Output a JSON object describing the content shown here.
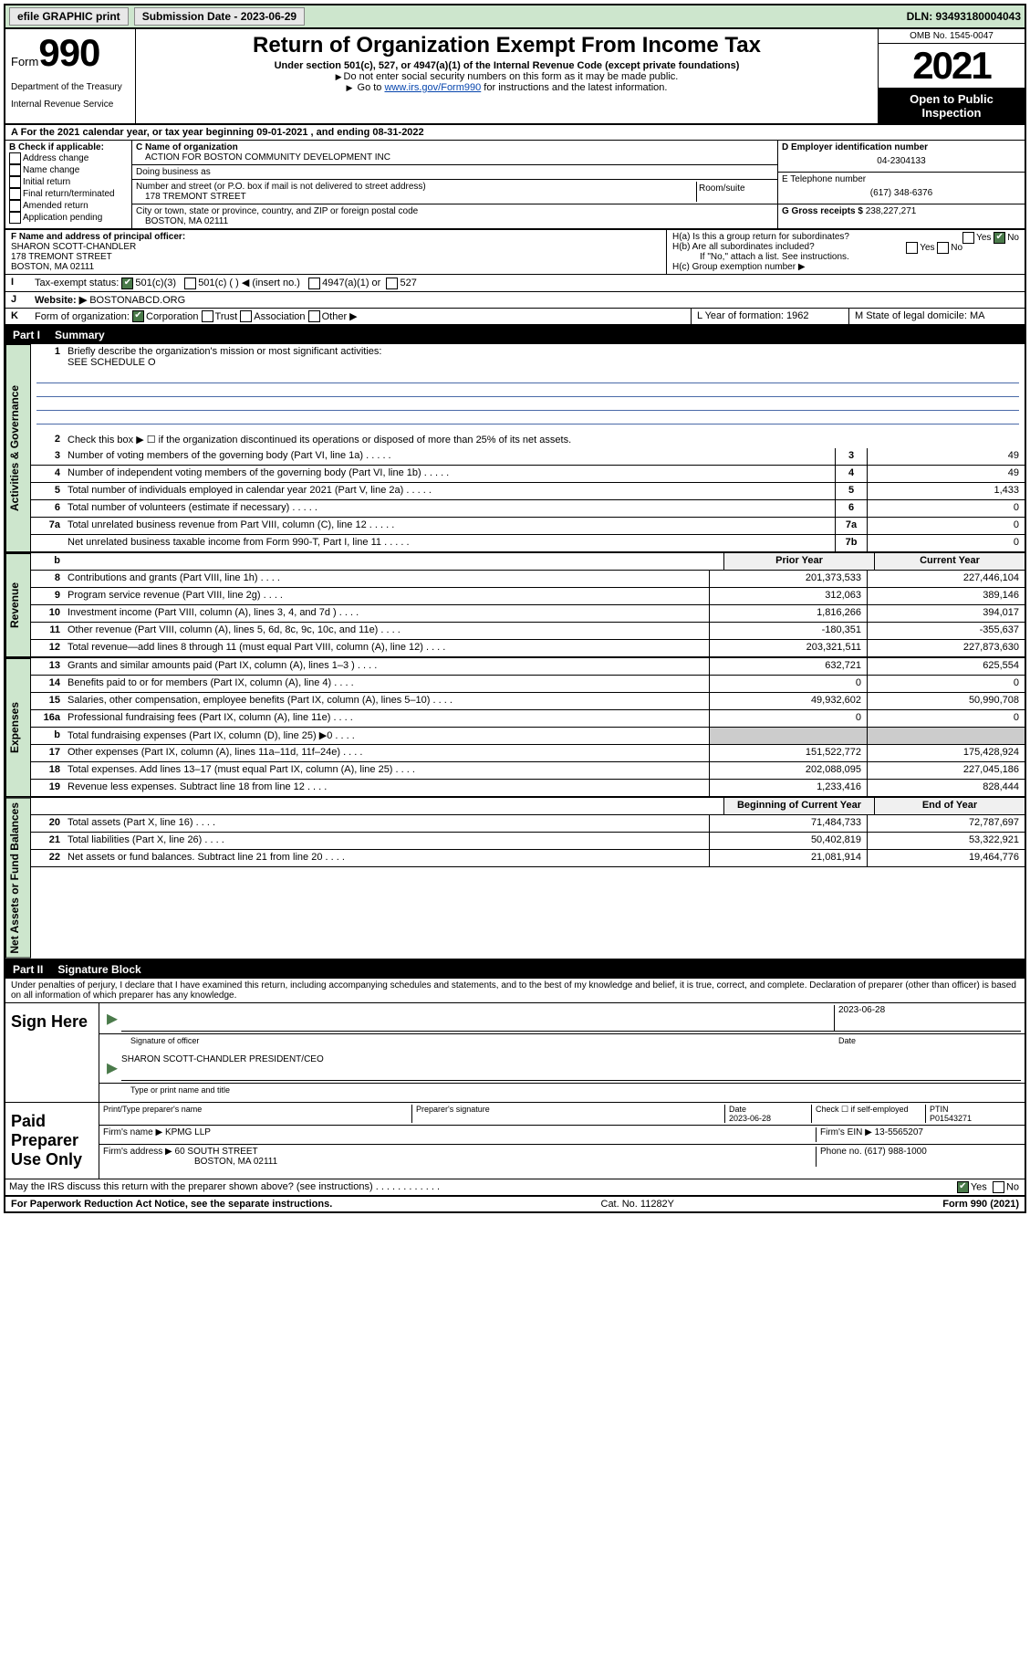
{
  "topbar": {
    "efile": "efile GRAPHIC print",
    "submission_label": "Submission Date - 2023-06-29",
    "dln": "DLN: 93493180004043"
  },
  "header": {
    "form_prefix": "Form",
    "form_number": "990",
    "dept": "Department of the Treasury",
    "irs": "Internal Revenue Service",
    "title": "Return of Organization Exempt From Income Tax",
    "sub1": "Under section 501(c), 527, or 4947(a)(1) of the Internal Revenue Code (except private foundations)",
    "sub2": "Do not enter social security numbers on this form as it may be made public.",
    "sub3_pre": "Go to ",
    "sub3_link": "www.irs.gov/Form990",
    "sub3_post": " for instructions and the latest information.",
    "omb": "OMB No. 1545-0047",
    "year": "2021",
    "open": "Open to Public Inspection"
  },
  "line_a": {
    "text_pre": "For the 2021 calendar year, or tax year beginning ",
    "begin": "09-01-2021",
    "mid": " , and ending ",
    "end": "08-31-2022"
  },
  "box_b": {
    "label": "B Check if applicable:",
    "opts": [
      "Address change",
      "Name change",
      "Initial return",
      "Final return/terminated",
      "Amended return",
      "Application pending"
    ]
  },
  "box_c": {
    "name_label": "C Name of organization",
    "name": "ACTION FOR BOSTON COMMUNITY DEVELOPMENT INC",
    "dba_label": "Doing business as",
    "street_label": "Number and street (or P.O. box if mail is not delivered to street address)",
    "room_label": "Room/suite",
    "street": "178 TREMONT STREET",
    "city_label": "City or town, state or province, country, and ZIP or foreign postal code",
    "city": "BOSTON, MA  02111"
  },
  "box_d": {
    "ein_label": "D Employer identification number",
    "ein": "04-2304133",
    "tel_label": "E Telephone number",
    "tel": "(617) 348-6376",
    "gross_label": "G Gross receipts $",
    "gross": "238,227,271"
  },
  "box_f": {
    "label": "F Name and address of principal officer:",
    "name": "SHARON SCOTT-CHANDLER",
    "street": "178 TREMONT STREET",
    "city": "BOSTON, MA  02111"
  },
  "box_h": {
    "ha": "H(a)  Is this a group return for subordinates?",
    "hb": "H(b)  Are all subordinates included?",
    "hb_note": "If \"No,\" attach a list. See instructions.",
    "hc": "H(c)  Group exemption number ▶",
    "yes": "Yes",
    "no": "No"
  },
  "line_i": {
    "lbl": "I",
    "text": "Tax-exempt status:",
    "o1": "501(c)(3)",
    "o2": "501(c) (   ) ◀ (insert no.)",
    "o3": "4947(a)(1) or",
    "o4": "527"
  },
  "line_j": {
    "lbl": "J",
    "text": "Website: ▶",
    "val": "BOSTONABCD.ORG"
  },
  "line_k": {
    "lbl": "K",
    "text": "Form of organization:",
    "o1": "Corporation",
    "o2": "Trust",
    "o3": "Association",
    "o4": "Other ▶"
  },
  "line_l": {
    "text": "L Year of formation: 1962"
  },
  "line_m": {
    "text": "M State of legal domicile: MA"
  },
  "part1": {
    "label": "Part I",
    "title": "Summary"
  },
  "summary": {
    "q1": "Briefly describe the organization's mission or most significant activities:",
    "q1_val": "SEE SCHEDULE O",
    "q2": "Check this box ▶ ☐  if the organization discontinued its operations or disposed of more than 25% of its net assets.",
    "rows_single": [
      {
        "n": "3",
        "d": "Number of voting members of the governing body (Part VI, line 1a)",
        "b": "3",
        "v": "49"
      },
      {
        "n": "4",
        "d": "Number of independent voting members of the governing body (Part VI, line 1b)",
        "b": "4",
        "v": "49"
      },
      {
        "n": "5",
        "d": "Total number of individuals employed in calendar year 2021 (Part V, line 2a)",
        "b": "5",
        "v": "1,433"
      },
      {
        "n": "6",
        "d": "Total number of volunteers (estimate if necessary)",
        "b": "6",
        "v": "0"
      },
      {
        "n": "7a",
        "d": "Total unrelated business revenue from Part VIII, column (C), line 12",
        "b": "7a",
        "v": "0"
      },
      {
        "n": "",
        "d": "Net unrelated business taxable income from Form 990-T, Part I, line 11",
        "b": "7b",
        "v": "0"
      }
    ],
    "col_prior": "Prior Year",
    "col_current": "Current Year",
    "col_begin": "Beginning of Current Year",
    "col_end": "End of Year",
    "revenue": [
      {
        "n": "8",
        "d": "Contributions and grants (Part VIII, line 1h)",
        "p": "201,373,533",
        "c": "227,446,104"
      },
      {
        "n": "9",
        "d": "Program service revenue (Part VIII, line 2g)",
        "p": "312,063",
        "c": "389,146"
      },
      {
        "n": "10",
        "d": "Investment income (Part VIII, column (A), lines 3, 4, and 7d )",
        "p": "1,816,266",
        "c": "394,017"
      },
      {
        "n": "11",
        "d": "Other revenue (Part VIII, column (A), lines 5, 6d, 8c, 9c, 10c, and 11e)",
        "p": "-180,351",
        "c": "-355,637"
      },
      {
        "n": "12",
        "d": "Total revenue—add lines 8 through 11 (must equal Part VIII, column (A), line 12)",
        "p": "203,321,511",
        "c": "227,873,630"
      }
    ],
    "expenses": [
      {
        "n": "13",
        "d": "Grants and similar amounts paid (Part IX, column (A), lines 1–3 )",
        "p": "632,721",
        "c": "625,554"
      },
      {
        "n": "14",
        "d": "Benefits paid to or for members (Part IX, column (A), line 4)",
        "p": "0",
        "c": "0"
      },
      {
        "n": "15",
        "d": "Salaries, other compensation, employee benefits (Part IX, column (A), lines 5–10)",
        "p": "49,932,602",
        "c": "50,990,708"
      },
      {
        "n": "16a",
        "d": "Professional fundraising fees (Part IX, column (A), line 11e)",
        "p": "0",
        "c": "0"
      },
      {
        "n": "b",
        "d": "Total fundraising expenses (Part IX, column (D), line 25) ▶0",
        "p": "",
        "c": "",
        "shaded": true
      },
      {
        "n": "17",
        "d": "Other expenses (Part IX, column (A), lines 11a–11d, 11f–24e)",
        "p": "151,522,772",
        "c": "175,428,924"
      },
      {
        "n": "18",
        "d": "Total expenses. Add lines 13–17 (must equal Part IX, column (A), line 25)",
        "p": "202,088,095",
        "c": "227,045,186"
      },
      {
        "n": "19",
        "d": "Revenue less expenses. Subtract line 18 from line 12",
        "p": "1,233,416",
        "c": "828,444"
      }
    ],
    "netassets": [
      {
        "n": "20",
        "d": "Total assets (Part X, line 16)",
        "p": "71,484,733",
        "c": "72,787,697"
      },
      {
        "n": "21",
        "d": "Total liabilities (Part X, line 26)",
        "p": "50,402,819",
        "c": "53,322,921"
      },
      {
        "n": "22",
        "d": "Net assets or fund balances. Subtract line 21 from line 20",
        "p": "21,081,914",
        "c": "19,464,776"
      }
    ]
  },
  "vtabs": {
    "gov": "Activities & Governance",
    "rev": "Revenue",
    "exp": "Expenses",
    "net": "Net Assets or Fund Balances"
  },
  "part2": {
    "label": "Part II",
    "title": "Signature Block"
  },
  "sig": {
    "penalties": "Under penalties of perjury, I declare that I have examined this return, including accompanying schedules and statements, and to the best of my knowledge and belief, it is true, correct, and complete. Declaration of preparer (other than officer) is based on all information of which preparer has any knowledge.",
    "sign_here": "Sign Here",
    "sig_officer": "Signature of officer",
    "sig_date": "2023-06-28",
    "date_lbl": "Date",
    "officer_name": "SHARON SCOTT-CHANDLER PRESIDENT/CEO",
    "type_name": "Type or print name and title",
    "paid": "Paid Preparer Use Only",
    "print_name_lbl": "Print/Type preparer's name",
    "prep_sig_lbl": "Preparer's signature",
    "prep_date": "2023-06-28",
    "check_self": "Check ☐ if self-employed",
    "ptin_lbl": "PTIN",
    "ptin": "P01543271",
    "firm_name_lbl": "Firm's name   ▶",
    "firm_name": "KPMG LLP",
    "firm_ein_lbl": "Firm's EIN ▶",
    "firm_ein": "13-5565207",
    "firm_addr_lbl": "Firm's address ▶",
    "firm_addr": "60 SOUTH STREET",
    "firm_city": "BOSTON, MA  02111",
    "phone_lbl": "Phone no.",
    "phone": "(617) 988-1000",
    "discuss": "May the IRS discuss this return with the preparer shown above? (see instructions)"
  },
  "footer": {
    "left": "For Paperwork Reduction Act Notice, see the separate instructions.",
    "mid": "Cat. No. 11282Y",
    "right": "Form 990 (2021)"
  }
}
